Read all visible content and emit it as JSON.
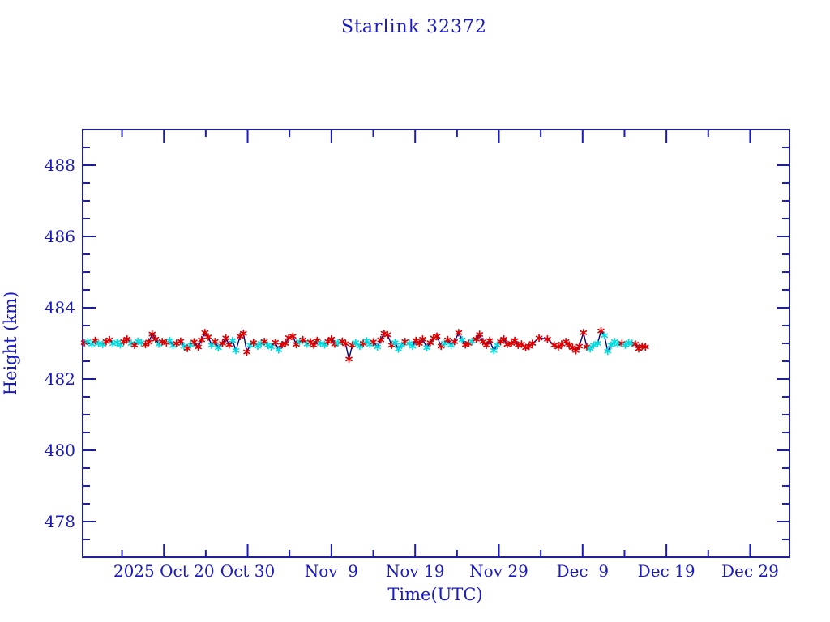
{
  "chart_data": {
    "type": "line",
    "title": "Starlink 32372",
    "xlabel": "Time(UTC)",
    "ylabel": "Height (km)",
    "ylim": [
      477,
      489
    ],
    "y_major_ticks": [
      478,
      480,
      482,
      484,
      486,
      488
    ],
    "y_tick_labels": [
      "478",
      "480",
      "482",
      "484",
      "486",
      "488"
    ],
    "y_minor_step": 0.5,
    "x_axis_days_range": [
      0,
      84.4
    ],
    "x_ticks": [
      {
        "label": "2025 Oct 20",
        "day": 9.7
      },
      {
        "label": "Oct 30",
        "day": 19.7
      },
      {
        "label": "Nov  9",
        "day": 29.7
      },
      {
        "label": "Nov 19",
        "day": 39.7
      },
      {
        "label": "Nov 29",
        "day": 49.7
      },
      {
        "label": "Dec  9",
        "day": 59.7
      },
      {
        "label": "Dec 19",
        "day": 69.7
      },
      {
        "label": "Dec 29",
        "day": 79.7
      }
    ],
    "x_minor_tick_days": [
      4.7,
      14.7,
      24.7,
      34.7,
      44.7,
      54.7,
      64.7,
      74.7
    ],
    "grid": false,
    "legend": "none",
    "axis_color": "#1a1ac4",
    "line_color": "#00008b",
    "marker": "asterisk",
    "marker_colors": [
      "#dd0000",
      "#00dde0"
    ],
    "points_format": [
      "days_from_left_edge",
      "height_km",
      "marker_color_index_0red_1cyan"
    ],
    "points": [
      [
        0.2,
        483.02,
        0
      ],
      [
        0.6,
        483.05,
        1
      ],
      [
        1.1,
        482.98,
        1
      ],
      [
        1.5,
        483.08,
        0
      ],
      [
        1.9,
        483.0,
        1
      ],
      [
        2.4,
        482.97,
        1
      ],
      [
        2.8,
        483.05,
        0
      ],
      [
        3.2,
        483.1,
        0
      ],
      [
        3.6,
        482.99,
        1
      ],
      [
        4.1,
        483.03,
        1
      ],
      [
        4.5,
        482.96,
        1
      ],
      [
        4.9,
        483.05,
        0
      ],
      [
        5.3,
        483.12,
        0
      ],
      [
        5.8,
        483.0,
        1
      ],
      [
        6.2,
        482.95,
        0
      ],
      [
        6.6,
        483.06,
        1
      ],
      [
        7.0,
        483.02,
        1
      ],
      [
        7.5,
        482.97,
        0
      ],
      [
        7.9,
        483.04,
        0
      ],
      [
        8.3,
        483.26,
        0
      ],
      [
        8.7,
        483.12,
        0
      ],
      [
        9.1,
        482.98,
        1
      ],
      [
        9.5,
        483.05,
        0
      ],
      [
        10.0,
        483.02,
        0
      ],
      [
        10.4,
        483.08,
        1
      ],
      [
        10.8,
        482.94,
        1
      ],
      [
        11.2,
        483.0,
        0
      ],
      [
        11.7,
        483.06,
        0
      ],
      [
        12.1,
        482.92,
        1
      ],
      [
        12.5,
        482.86,
        0
      ],
      [
        12.9,
        482.96,
        1
      ],
      [
        13.3,
        483.04,
        0
      ],
      [
        13.8,
        482.9,
        0
      ],
      [
        14.2,
        483.1,
        0
      ],
      [
        14.6,
        483.3,
        0
      ],
      [
        15.0,
        483.18,
        0
      ],
      [
        15.4,
        482.95,
        1
      ],
      [
        15.8,
        483.05,
        0
      ],
      [
        16.2,
        482.88,
        1
      ],
      [
        16.7,
        483.0,
        0
      ],
      [
        17.1,
        483.15,
        0
      ],
      [
        17.5,
        482.96,
        0
      ],
      [
        17.9,
        483.08,
        1
      ],
      [
        18.3,
        482.8,
        1
      ],
      [
        18.8,
        483.2,
        0
      ],
      [
        19.2,
        483.28,
        0
      ],
      [
        19.6,
        482.76,
        0
      ],
      [
        20.0,
        482.95,
        1
      ],
      [
        20.4,
        483.02,
        0
      ],
      [
        20.9,
        482.92,
        1
      ],
      [
        21.3,
        483.0,
        1
      ],
      [
        21.7,
        483.05,
        0
      ],
      [
        22.1,
        482.95,
        1
      ],
      [
        22.5,
        482.9,
        1
      ],
      [
        23.0,
        483.03,
        0
      ],
      [
        23.4,
        482.82,
        1
      ],
      [
        23.8,
        482.96,
        0
      ],
      [
        24.2,
        483.0,
        0
      ],
      [
        24.6,
        483.16,
        0
      ],
      [
        25.1,
        483.2,
        0
      ],
      [
        25.5,
        482.97,
        0
      ],
      [
        25.9,
        483.05,
        1
      ],
      [
        26.3,
        483.1,
        0
      ],
      [
        26.8,
        482.98,
        1
      ],
      [
        27.2,
        483.04,
        0
      ],
      [
        27.6,
        482.95,
        0
      ],
      [
        28.0,
        483.08,
        0
      ],
      [
        28.4,
        483.0,
        1
      ],
      [
        28.9,
        482.96,
        1
      ],
      [
        29.3,
        483.05,
        0
      ],
      [
        29.7,
        483.12,
        0
      ],
      [
        30.1,
        482.98,
        0
      ],
      [
        30.5,
        483.02,
        1
      ],
      [
        31.0,
        483.06,
        0
      ],
      [
        31.4,
        482.99,
        0
      ],
      [
        31.8,
        482.56,
        0
      ],
      [
        32.2,
        482.95,
        0
      ],
      [
        32.6,
        483.02,
        1
      ],
      [
        33.1,
        482.92,
        1
      ],
      [
        33.5,
        483.0,
        0
      ],
      [
        33.9,
        483.07,
        1
      ],
      [
        34.3,
        482.97,
        1
      ],
      [
        34.7,
        483.04,
        0
      ],
      [
        35.2,
        482.9,
        1
      ],
      [
        35.6,
        483.1,
        0
      ],
      [
        36.0,
        483.28,
        0
      ],
      [
        36.4,
        483.24,
        0
      ],
      [
        36.9,
        482.95,
        0
      ],
      [
        37.3,
        483.02,
        1
      ],
      [
        37.7,
        482.84,
        1
      ],
      [
        38.1,
        482.95,
        1
      ],
      [
        38.5,
        483.05,
        0
      ],
      [
        39.0,
        483.0,
        1
      ],
      [
        39.4,
        482.92,
        1
      ],
      [
        39.8,
        483.08,
        0
      ],
      [
        40.2,
        483.0,
        0
      ],
      [
        40.6,
        483.12,
        0
      ],
      [
        41.1,
        482.88,
        1
      ],
      [
        41.5,
        483.02,
        0
      ],
      [
        41.9,
        483.15,
        0
      ],
      [
        42.3,
        483.2,
        0
      ],
      [
        42.8,
        482.92,
        0
      ],
      [
        43.2,
        483.0,
        1
      ],
      [
        43.6,
        483.1,
        0
      ],
      [
        44.0,
        482.95,
        1
      ],
      [
        44.4,
        483.05,
        0
      ],
      [
        44.9,
        483.3,
        0
      ],
      [
        45.3,
        483.1,
        1
      ],
      [
        45.7,
        482.96,
        0
      ],
      [
        46.1,
        483.0,
        0
      ],
      [
        46.5,
        483.06,
        1
      ],
      [
        47.0,
        483.12,
        0
      ],
      [
        47.4,
        483.25,
        0
      ],
      [
        47.8,
        483.05,
        0
      ],
      [
        48.2,
        482.95,
        0
      ],
      [
        48.6,
        483.08,
        0
      ],
      [
        49.1,
        482.8,
        1
      ],
      [
        49.5,
        482.95,
        1
      ],
      [
        49.9,
        483.05,
        0
      ],
      [
        50.3,
        483.12,
        0
      ],
      [
        50.7,
        482.97,
        0
      ],
      [
        51.2,
        483.0,
        0
      ],
      [
        51.6,
        483.08,
        0
      ],
      [
        52.0,
        482.95,
        0
      ],
      [
        52.4,
        482.98,
        0
      ],
      [
        52.9,
        482.88,
        0
      ],
      [
        53.3,
        482.92,
        0
      ],
      [
        53.7,
        483.0,
        0
      ],
      [
        54.5,
        483.15,
        0
      ],
      [
        55.5,
        483.12,
        0
      ],
      [
        56.3,
        482.95,
        0
      ],
      [
        56.8,
        482.9,
        0
      ],
      [
        57.2,
        482.98,
        0
      ],
      [
        57.7,
        483.05,
        0
      ],
      [
        58.1,
        482.95,
        0
      ],
      [
        58.5,
        482.88,
        0
      ],
      [
        58.9,
        482.8,
        0
      ],
      [
        59.3,
        482.92,
        0
      ],
      [
        59.8,
        483.3,
        0
      ],
      [
        60.2,
        482.9,
        0
      ],
      [
        60.6,
        482.85,
        1
      ],
      [
        61.0,
        482.95,
        1
      ],
      [
        61.5,
        483.0,
        1
      ],
      [
        61.9,
        483.35,
        0
      ],
      [
        62.3,
        483.22,
        1
      ],
      [
        62.7,
        482.78,
        1
      ],
      [
        63.1,
        482.95,
        1
      ],
      [
        63.5,
        483.05,
        1
      ],
      [
        63.9,
        482.98,
        1
      ],
      [
        64.4,
        483.0,
        0
      ],
      [
        64.8,
        482.95,
        1
      ],
      [
        65.2,
        483.02,
        1
      ],
      [
        65.6,
        483.0,
        1
      ],
      [
        66.0,
        482.98,
        0
      ],
      [
        66.4,
        482.85,
        0
      ],
      [
        66.8,
        482.92,
        0
      ],
      [
        67.2,
        482.9,
        0
      ]
    ]
  }
}
